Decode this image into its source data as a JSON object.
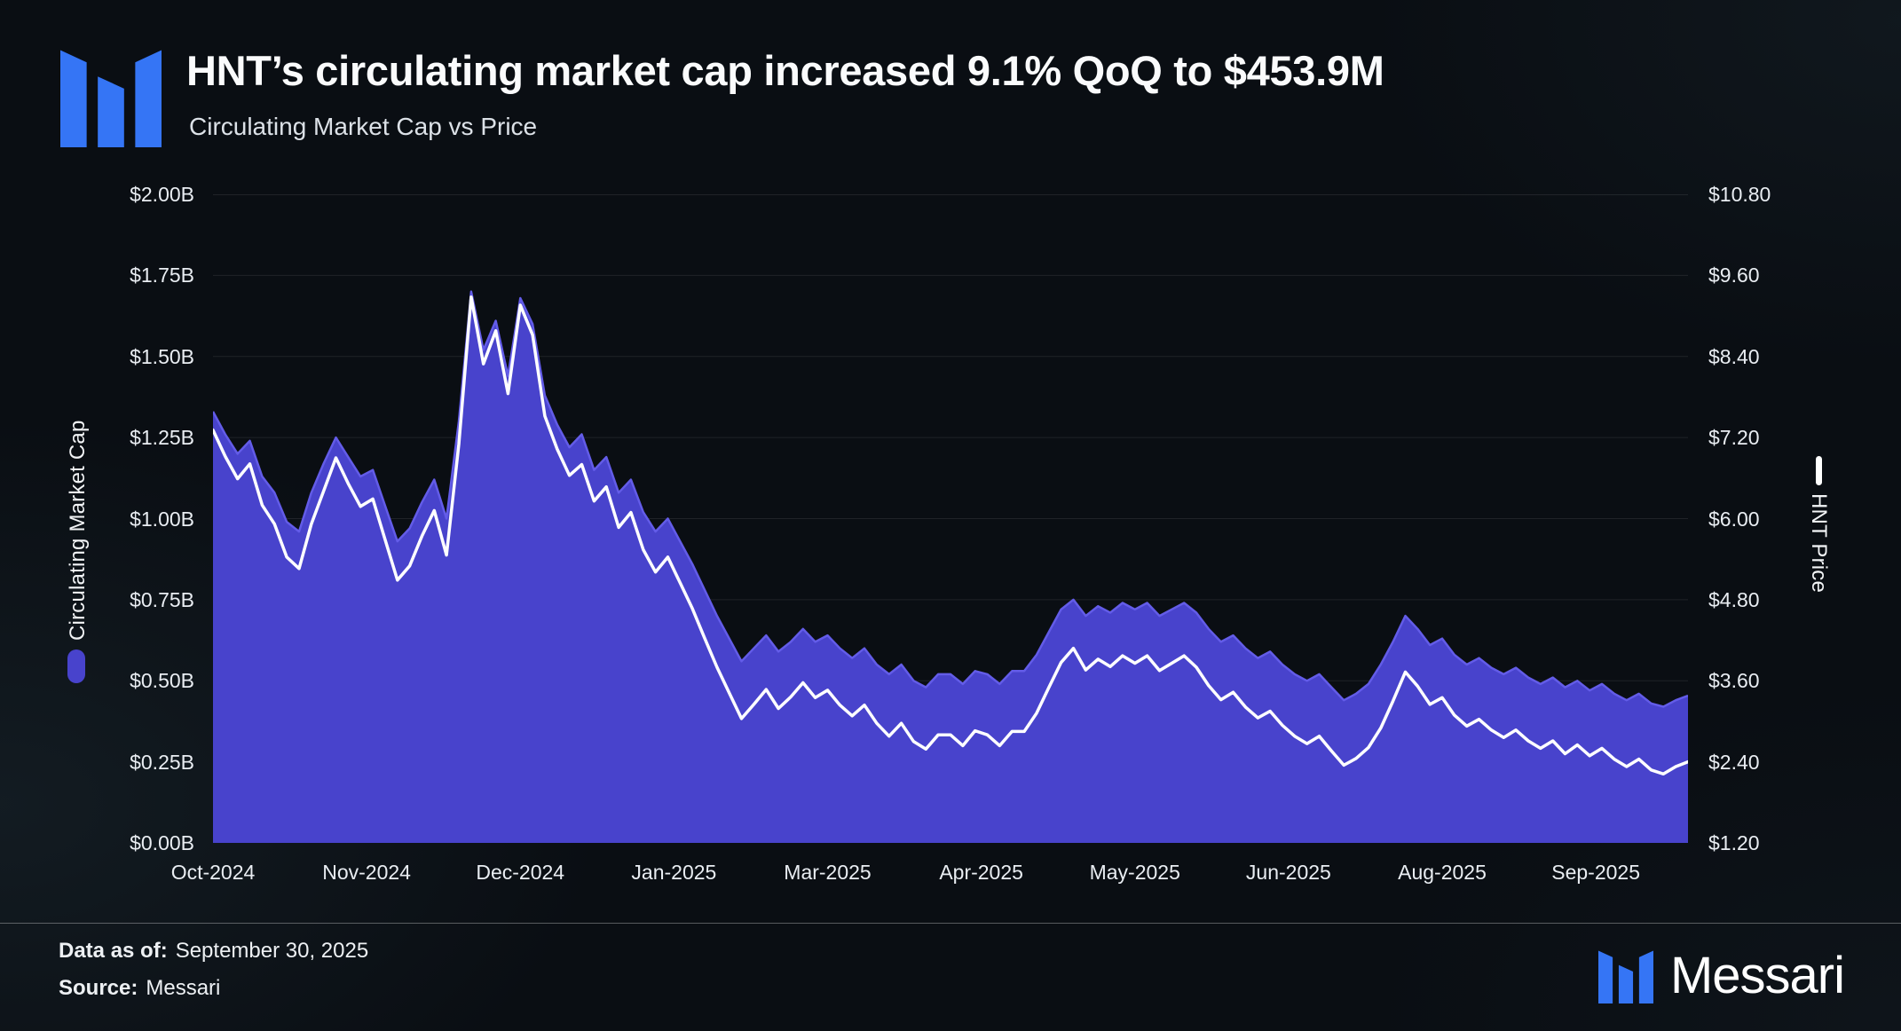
{
  "header": {
    "title": "HNT’s circulating market cap increased 9.1% QoQ to $453.9M",
    "subtitle": "Circulating Market Cap vs Price"
  },
  "footer": {
    "data_as_of_label": "Data as of:",
    "data_as_of_value": "September 30, 2025",
    "source_label": "Source:",
    "source_value": "Messari",
    "brand_wordmark": "Messari"
  },
  "icons": {
    "brand_logo": "messari-logomark"
  },
  "colors": {
    "background": "#0A0E13",
    "area_fill": "#4843CC",
    "area_stroke": "#635CE8",
    "price_line": "#FFFFFF",
    "logo_blue": "#3575F5",
    "grid_line": "rgba(255,255,255,0.09)",
    "tick_text": "#E9EDF2"
  },
  "chart_data": {
    "type": "area+line",
    "title": "Circulating Market Cap vs Price",
    "grid": "horizontal",
    "x_tick_labels": [
      "Oct-2024",
      "Nov-2024",
      "Dec-2024",
      "Jan-2025",
      "Mar-2025",
      "Apr-2025",
      "May-2025",
      "Jun-2025",
      "Aug-2025",
      "Sep-2025"
    ],
    "left_axis": {
      "label": "Circulating Market Cap",
      "unit": "$B",
      "range": [
        0,
        2
      ],
      "ticks": [
        "$0.00B",
        "$0.25B",
        "$0.50B",
        "$0.75B",
        "$1.00B",
        "$1.25B",
        "$1.50B",
        "$1.75B",
        "$2.00B"
      ]
    },
    "right_axis": {
      "label": "HNT Price",
      "unit": "$",
      "range": [
        1.2,
        10.8
      ],
      "ticks": [
        "$1.20",
        "$2.40",
        "$3.60",
        "$4.80",
        "$6.00",
        "$7.20",
        "$8.40",
        "$9.60",
        "$10.80"
      ]
    },
    "series": [
      {
        "name": "Circulating Market Cap",
        "type": "area",
        "axis": "left",
        "unit": "$B",
        "values": [
          1.33,
          1.26,
          1.2,
          1.24,
          1.13,
          1.08,
          0.99,
          0.96,
          1.08,
          1.17,
          1.25,
          1.19,
          1.13,
          1.15,
          1.04,
          0.93,
          0.97,
          1.05,
          1.12,
          1.0,
          1.3,
          1.7,
          1.52,
          1.61,
          1.44,
          1.68,
          1.6,
          1.38,
          1.29,
          1.22,
          1.26,
          1.15,
          1.19,
          1.08,
          1.12,
          1.02,
          0.96,
          1.0,
          0.93,
          0.86,
          0.78,
          0.7,
          0.63,
          0.56,
          0.6,
          0.64,
          0.59,
          0.62,
          0.66,
          0.62,
          0.64,
          0.6,
          0.57,
          0.6,
          0.55,
          0.52,
          0.55,
          0.5,
          0.48,
          0.52,
          0.52,
          0.49,
          0.53,
          0.52,
          0.49,
          0.53,
          0.53,
          0.58,
          0.65,
          0.72,
          0.75,
          0.7,
          0.73,
          0.71,
          0.74,
          0.72,
          0.74,
          0.7,
          0.72,
          0.74,
          0.71,
          0.66,
          0.62,
          0.64,
          0.6,
          0.57,
          0.59,
          0.55,
          0.52,
          0.5,
          0.52,
          0.48,
          0.44,
          0.46,
          0.49,
          0.55,
          0.62,
          0.7,
          0.66,
          0.61,
          0.63,
          0.58,
          0.55,
          0.57,
          0.54,
          0.52,
          0.54,
          0.51,
          0.49,
          0.51,
          0.48,
          0.5,
          0.47,
          0.49,
          0.46,
          0.44,
          0.46,
          0.43,
          0.42,
          0.44,
          0.454
        ]
      },
      {
        "name": "HNT Price",
        "type": "line",
        "axis": "right",
        "unit": "$",
        "values": [
          7.31,
          6.92,
          6.59,
          6.81,
          6.2,
          5.92,
          5.43,
          5.26,
          5.92,
          6.41,
          6.9,
          6.52,
          6.18,
          6.29,
          5.69,
          5.09,
          5.3,
          5.74,
          6.12,
          5.46,
          7.1,
          9.28,
          8.29,
          8.78,
          7.85,
          9.16,
          8.72,
          7.52,
          7.03,
          6.64,
          6.8,
          6.26,
          6.47,
          5.87,
          6.09,
          5.54,
          5.21,
          5.43,
          5.05,
          4.67,
          4.23,
          3.8,
          3.42,
          3.04,
          3.25,
          3.47,
          3.19,
          3.36,
          3.57,
          3.35,
          3.46,
          3.24,
          3.08,
          3.24,
          2.97,
          2.78,
          2.97,
          2.7,
          2.59,
          2.8,
          2.8,
          2.64,
          2.86,
          2.8,
          2.64,
          2.85,
          2.85,
          3.12,
          3.5,
          3.87,
          4.08,
          3.76,
          3.92,
          3.81,
          3.97,
          3.86,
          3.97,
          3.75,
          3.86,
          3.97,
          3.8,
          3.53,
          3.32,
          3.43,
          3.21,
          3.05,
          3.15,
          2.94,
          2.78,
          2.67,
          2.78,
          2.56,
          2.35,
          2.45,
          2.61,
          2.9,
          3.3,
          3.73,
          3.52,
          3.25,
          3.35,
          3.09,
          2.93,
          3.03,
          2.87,
          2.76,
          2.87,
          2.71,
          2.6,
          2.71,
          2.52,
          2.65,
          2.49,
          2.6,
          2.44,
          2.33,
          2.44,
          2.28,
          2.22,
          2.33,
          2.4
        ]
      }
    ]
  }
}
